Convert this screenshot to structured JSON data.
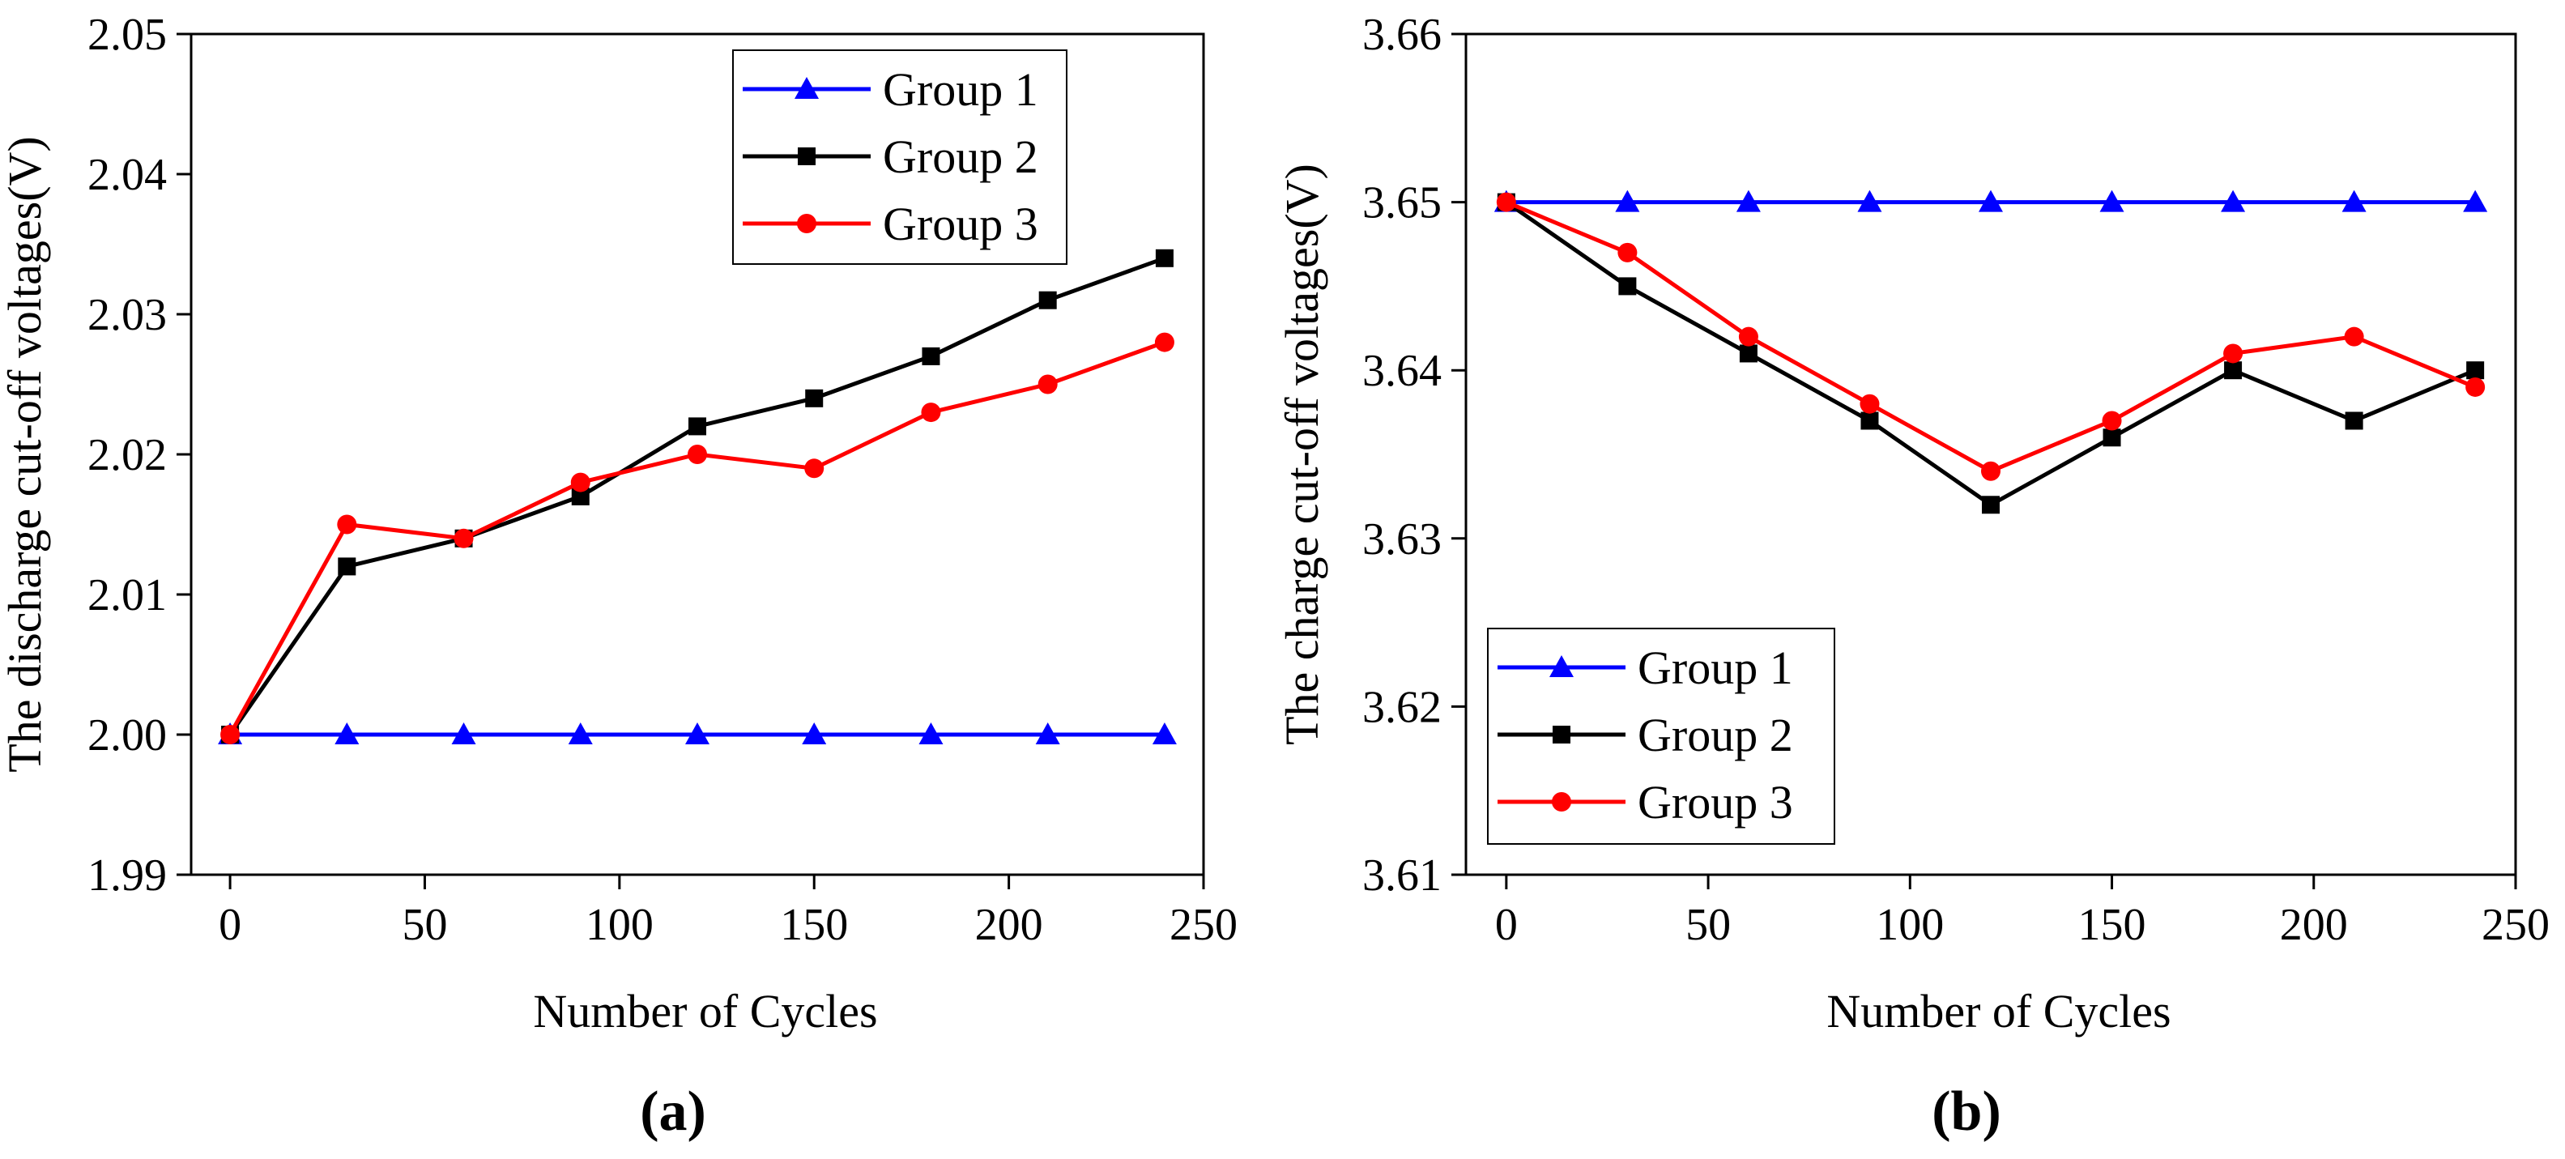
{
  "chart_data": [
    {
      "type": "line",
      "panel_label": "(a)",
      "xlabel": "Number of Cycles",
      "ylabel": "The discharge cut-off voltages(V)",
      "xlim": [
        -10,
        250
      ],
      "ylim": [
        1.99,
        2.05
      ],
      "xticks": [
        0,
        50,
        100,
        150,
        200,
        250
      ],
      "yticks": [
        1.99,
        2.0,
        2.01,
        2.02,
        2.03,
        2.04,
        2.05
      ],
      "ytick_labels": [
        "1.99",
        "2.00",
        "2.01",
        "2.02",
        "2.03",
        "2.04",
        "2.05"
      ],
      "x": [
        0,
        30,
        60,
        90,
        120,
        150,
        180,
        210,
        240
      ],
      "legend_position": "top-right",
      "series": [
        {
          "name": "Group 1",
          "color": "#0000ff",
          "marker": "triangle",
          "values": [
            2.0,
            2.0,
            2.0,
            2.0,
            2.0,
            2.0,
            2.0,
            2.0,
            2.0
          ]
        },
        {
          "name": "Group 2",
          "color": "#000000",
          "marker": "square",
          "values": [
            2.0,
            2.012,
            2.014,
            2.017,
            2.022,
            2.024,
            2.027,
            2.031,
            2.034
          ]
        },
        {
          "name": "Group 3",
          "color": "#ff0000",
          "marker": "circle",
          "values": [
            2.0,
            2.015,
            2.014,
            2.018,
            2.02,
            2.019,
            2.023,
            2.025,
            2.028
          ]
        }
      ]
    },
    {
      "type": "line",
      "panel_label": "(b)",
      "xlabel": "Number of Cycles",
      "ylabel": "The charge cut-off voltages(V)",
      "xlim": [
        -10,
        250
      ],
      "ylim": [
        3.61,
        3.66
      ],
      "xticks": [
        0,
        50,
        100,
        150,
        200,
        250
      ],
      "yticks": [
        3.61,
        3.62,
        3.63,
        3.64,
        3.65,
        3.66
      ],
      "ytick_labels": [
        "3.61",
        "3.62",
        "3.63",
        "3.64",
        "3.65",
        "3.66"
      ],
      "x": [
        0,
        30,
        60,
        90,
        120,
        150,
        180,
        210,
        240
      ],
      "legend_position": "bottom-left",
      "series": [
        {
          "name": "Group 1",
          "color": "#0000ff",
          "marker": "triangle",
          "values": [
            3.65,
            3.65,
            3.65,
            3.65,
            3.65,
            3.65,
            3.65,
            3.65,
            3.65
          ]
        },
        {
          "name": "Group 2",
          "color": "#000000",
          "marker": "square",
          "values": [
            3.65,
            3.645,
            3.641,
            3.637,
            3.632,
            3.636,
            3.64,
            3.637,
            3.64
          ]
        },
        {
          "name": "Group 3",
          "color": "#ff0000",
          "marker": "circle",
          "values": [
            3.65,
            3.647,
            3.642,
            3.638,
            3.634,
            3.637,
            3.641,
            3.642,
            3.639
          ]
        }
      ]
    }
  ]
}
